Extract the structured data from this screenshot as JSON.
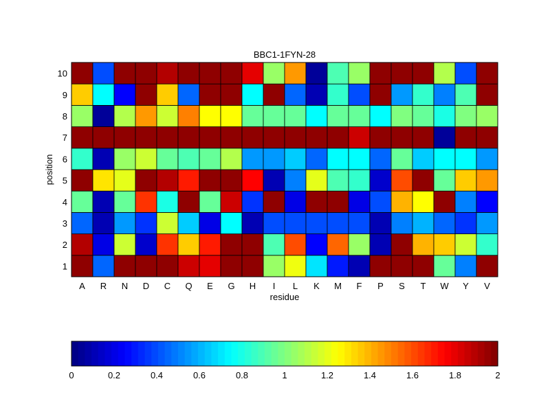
{
  "chart_data": {
    "type": "heatmap",
    "title": "BBC1-1FYN-28",
    "xlabel": "residue",
    "ylabel": "position",
    "x_categories": [
      "A",
      "R",
      "N",
      "D",
      "C",
      "Q",
      "E",
      "G",
      "H",
      "I",
      "L",
      "K",
      "M",
      "F",
      "P",
      "S",
      "T",
      "W",
      "Y",
      "V"
    ],
    "y_categories": [
      "1",
      "2",
      "3",
      "4",
      "5",
      "6",
      "7",
      "8",
      "9",
      "10"
    ],
    "values": [
      [
        1.97,
        0.45,
        1.97,
        1.97,
        1.97,
        1.85,
        1.8,
        1.97,
        1.97,
        1.05,
        1.22,
        0.7,
        0.3,
        0.1,
        1.97,
        1.97,
        1.97,
        0.95,
        0.5,
        1.97
      ],
      [
        1.9,
        0.2,
        1.15,
        0.15,
        1.65,
        1.35,
        1.7,
        1.97,
        1.97,
        0.9,
        1.6,
        0.25,
        1.55,
        1.05,
        0.1,
        1.97,
        1.4,
        1.35,
        1.15,
        0.85
      ],
      [
        0.45,
        0.1,
        0.55,
        0.35,
        1.15,
        0.65,
        0.2,
        0.75,
        0.1,
        0.4,
        0.4,
        0.4,
        0.4,
        0.4,
        0.1,
        0.5,
        0.6,
        0.45,
        0.35,
        0.55
      ],
      [
        0.95,
        0.1,
        0.95,
        1.65,
        0.8,
        1.97,
        0.95,
        1.85,
        0.35,
        1.97,
        0.2,
        1.97,
        1.97,
        0.2,
        0.4,
        1.4,
        1.25,
        1.97,
        0.5,
        0.25
      ],
      [
        1.97,
        1.3,
        1.2,
        1.97,
        1.9,
        1.7,
        1.97,
        1.97,
        1.75,
        0.1,
        0.5,
        1.2,
        0.9,
        0.85,
        0.15,
        1.6,
        1.97,
        0.95,
        1.35,
        1.45
      ],
      [
        0.85,
        0.1,
        1.05,
        1.15,
        0.95,
        0.9,
        0.95,
        1.1,
        0.55,
        0.55,
        0.65,
        0.45,
        0.75,
        0.75,
        0.45,
        0.95,
        0.65,
        0.75,
        0.75,
        0.55
      ],
      [
        1.97,
        1.97,
        1.97,
        1.97,
        1.97,
        1.97,
        1.97,
        1.97,
        1.97,
        1.97,
        1.97,
        1.97,
        1.97,
        1.85,
        1.97,
        1.97,
        1.97,
        0.05,
        1.97,
        1.97
      ],
      [
        1.05,
        0.05,
        1.1,
        1.45,
        1.15,
        1.5,
        1.25,
        1.25,
        0.95,
        0.95,
        0.95,
        0.75,
        0.95,
        0.95,
        0.75,
        1.0,
        0.95,
        0.8,
        1.0,
        1.05
      ],
      [
        1.35,
        0.75,
        0.25,
        1.97,
        1.35,
        0.45,
        1.97,
        1.97,
        0.75,
        1.97,
        0.45,
        0.1,
        0.85,
        0.4,
        1.97,
        0.55,
        0.85,
        0.5,
        0.9,
        1.97
      ],
      [
        1.97,
        0.4,
        1.97,
        1.97,
        1.9,
        1.97,
        1.97,
        1.97,
        1.8,
        1.05,
        1.45,
        0.05,
        0.9,
        1.05,
        1.97,
        1.97,
        1.97,
        1.1,
        0.4,
        1.97
      ]
    ],
    "colorbar": {
      "range": [
        0,
        2
      ],
      "ticks": [
        "0",
        "0.2",
        "0.4",
        "0.6",
        "0.8",
        "1",
        "1.2",
        "1.4",
        "1.6",
        "1.8",
        "2"
      ],
      "orientation": "horizontal",
      "placement": "bottom"
    },
    "colormap": "jet",
    "grid": true
  }
}
